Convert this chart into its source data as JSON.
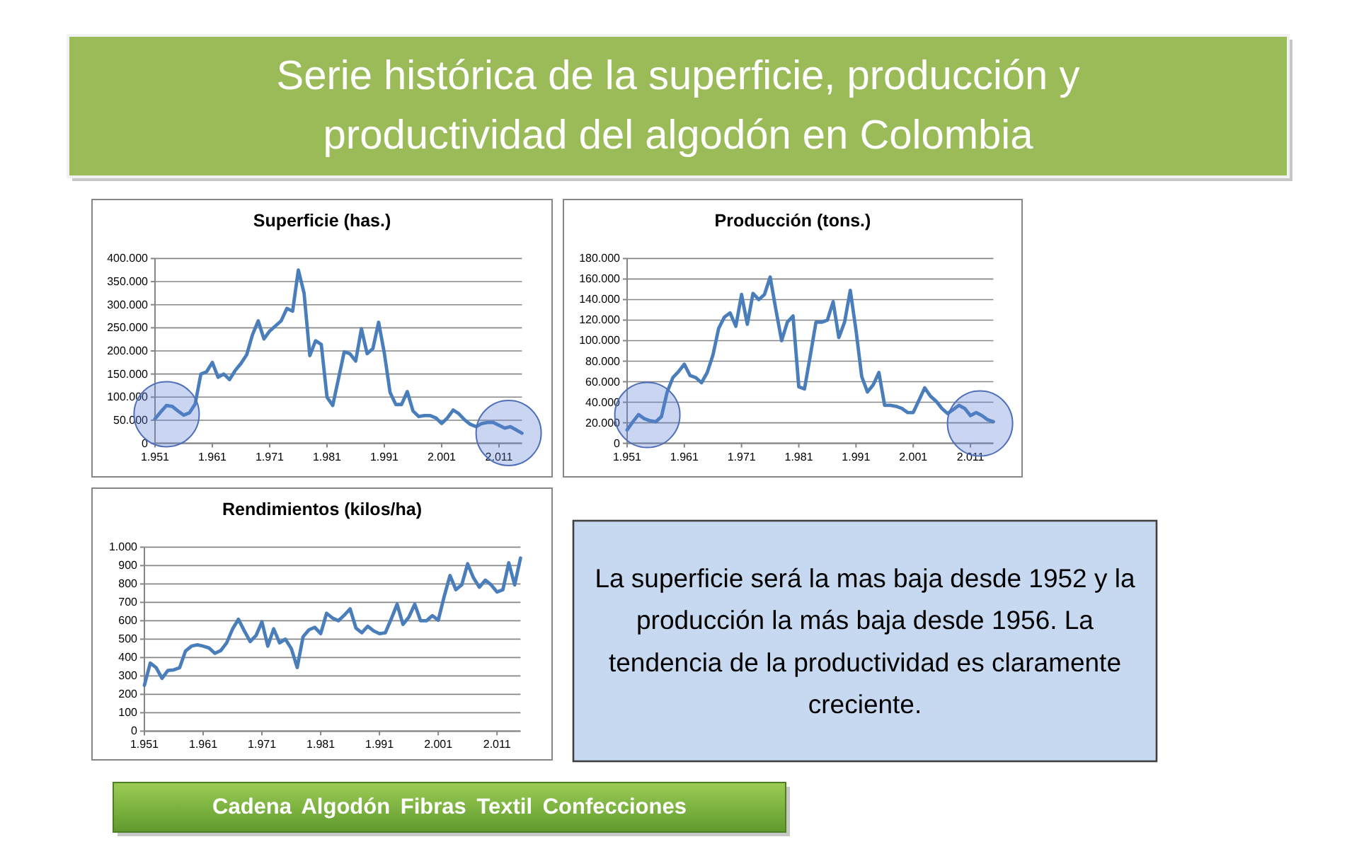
{
  "chart_data": [
    {
      "type": "other",
      "title": "Serie histórica de la superficie, producción y productividad del algodón en Colombia"
    },
    {
      "type": "line",
      "title": "Superficie (has.)",
      "x": [
        1951,
        1952,
        1953,
        1954,
        1955,
        1956,
        1957,
        1958,
        1959,
        1960,
        1961,
        1962,
        1963,
        1964,
        1965,
        1966,
        1967,
        1968,
        1969,
        1970,
        1971,
        1972,
        1973,
        1974,
        1975,
        1976,
        1977,
        1978,
        1979,
        1980,
        1981,
        1982,
        1983,
        1984,
        1985,
        1986,
        1987,
        1988,
        1989,
        1990,
        1991,
        1992,
        1993,
        1994,
        1995,
        1996,
        1997,
        1998,
        1999,
        2000,
        2001,
        2002,
        2003,
        2004,
        2005,
        2006,
        2007,
        2008,
        2009,
        2010,
        2011,
        2012,
        2013,
        2014,
        2015
      ],
      "series": [
        {
          "color": "#4a7ebb",
          "values": [
            53000,
            68000,
            82000,
            80000,
            70000,
            61000,
            66000,
            85000,
            150000,
            155000,
            175000,
            143000,
            150000,
            138000,
            158000,
            173000,
            192000,
            235000,
            265000,
            226000,
            243000,
            254000,
            265000,
            292000,
            286000,
            375000,
            325000,
            190000,
            222000,
            214000,
            100000,
            82000,
            140000,
            198000,
            194000,
            178000,
            248000,
            194000,
            205000,
            262000,
            195000,
            110000,
            84000,
            84000,
            112000,
            70000,
            58000,
            60000,
            60000,
            55000,
            43000,
            55000,
            72000,
            64000,
            51000,
            41000,
            36000,
            43000,
            45000,
            45000,
            39000,
            33000,
            36000,
            29000,
            22000
          ]
        }
      ],
      "xlim": [
        1951,
        2015
      ],
      "xticks": [
        {
          "value": 1951,
          "label": "1.951"
        },
        {
          "value": 1961,
          "label": "1.961"
        },
        {
          "value": 1971,
          "label": "1.971"
        },
        {
          "value": 1981,
          "label": "1.981"
        },
        {
          "value": 1991,
          "label": "1.991"
        },
        {
          "value": 2001,
          "label": "2.001"
        },
        {
          "value": 2011,
          "label": "2.011"
        }
      ],
      "ylim": [
        0,
        400000
      ],
      "yticks": [
        0,
        {
          "value": 50000,
          "label": "50.000"
        },
        {
          "value": 100000,
          "label": "100.000"
        },
        {
          "value": 150000,
          "label": "150.000"
        },
        {
          "value": 200000,
          "label": "200.000"
        },
        {
          "value": 250000,
          "label": "250.000"
        },
        {
          "value": 300000,
          "label": "300.000"
        },
        {
          "value": 350000,
          "label": "350.000"
        },
        {
          "value": 400000,
          "label": "400.000"
        }
      ],
      "grid": "y"
    },
    {
      "type": "line",
      "title": "Producción (tons.)",
      "x": [
        1951,
        1952,
        1953,
        1954,
        1955,
        1956,
        1957,
        1958,
        1959,
        1960,
        1961,
        1962,
        1963,
        1964,
        1965,
        1966,
        1967,
        1968,
        1969,
        1970,
        1971,
        1972,
        1973,
        1974,
        1975,
        1976,
        1977,
        1978,
        1979,
        1980,
        1981,
        1982,
        1983,
        1984,
        1985,
        1986,
        1987,
        1988,
        1989,
        1990,
        1991,
        1992,
        1993,
        1994,
        1995,
        1996,
        1997,
        1998,
        1999,
        2000,
        2001,
        2002,
        2003,
        2004,
        2005,
        2006,
        2007,
        2008,
        2009,
        2010,
        2011,
        2012,
        2013,
        2014,
        2015
      ],
      "series": [
        {
          "color": "#4a7ebb",
          "values": [
            13000,
            21000,
            28000,
            24000,
            22000,
            21000,
            26000,
            50000,
            64000,
            70000,
            77000,
            66000,
            64000,
            59000,
            69000,
            86000,
            112000,
            123000,
            127000,
            114000,
            145000,
            116000,
            146000,
            140000,
            145000,
            162000,
            130000,
            100000,
            118000,
            124000,
            55000,
            53000,
            85000,
            118000,
            118000,
            120000,
            138000,
            103000,
            118000,
            149000,
            110000,
            65000,
            50000,
            57000,
            69000,
            37000,
            37000,
            36000,
            34000,
            30000,
            30000,
            42000,
            54000,
            46000,
            41000,
            34000,
            29000,
            33000,
            37000,
            34000,
            27000,
            30000,
            27000,
            23000,
            21000
          ]
        }
      ],
      "xlim": [
        1951,
        2015
      ],
      "xticks": [
        {
          "value": 1951,
          "label": "1.951"
        },
        {
          "value": 1961,
          "label": "1.961"
        },
        {
          "value": 1971,
          "label": "1.971"
        },
        {
          "value": 1981,
          "label": "1.981"
        },
        {
          "value": 1991,
          "label": "1.991"
        },
        {
          "value": 2001,
          "label": "2.001"
        },
        {
          "value": 2011,
          "label": "2.011"
        }
      ],
      "ylim": [
        0,
        180000
      ],
      "yticks": [
        0,
        {
          "value": 20000,
          "label": "20.000"
        },
        {
          "value": 40000,
          "label": "40.000"
        },
        {
          "value": 60000,
          "label": "60.000"
        },
        {
          "value": 80000,
          "label": "80.000"
        },
        {
          "value": 100000,
          "label": "100.000"
        },
        {
          "value": 120000,
          "label": "120.000"
        },
        {
          "value": 140000,
          "label": "140.000"
        },
        {
          "value": 160000,
          "label": "160.000"
        },
        {
          "value": 180000,
          "label": "180.000"
        }
      ],
      "grid": "y"
    },
    {
      "type": "line",
      "title": "Rendimientos (kilos/ha)",
      "x": [
        1951,
        1952,
        1953,
        1954,
        1955,
        1956,
        1957,
        1958,
        1959,
        1960,
        1961,
        1962,
        1963,
        1964,
        1965,
        1966,
        1967,
        1968,
        1969,
        1970,
        1971,
        1972,
        1973,
        1974,
        1975,
        1976,
        1977,
        1978,
        1979,
        1980,
        1981,
        1982,
        1983,
        1984,
        1985,
        1986,
        1987,
        1988,
        1989,
        1990,
        1991,
        1992,
        1993,
        1994,
        1995,
        1996,
        1997,
        1998,
        1999,
        2000,
        2001,
        2002,
        2003,
        2004,
        2005,
        2006,
        2007,
        2008,
        2009,
        2010,
        2011,
        2012,
        2013,
        2014,
        2015
      ],
      "series": [
        {
          "color": "#4a7ebb",
          "values": [
            249,
            370,
            345,
            287,
            330,
            333,
            345,
            436,
            462,
            469,
            462,
            452,
            423,
            438,
            480,
            555,
            608,
            545,
            487,
            520,
            595,
            462,
            556,
            480,
            500,
            449,
            346,
            513,
            551,
            564,
            530,
            641,
            615,
            600,
            630,
            665,
            560,
            535,
            570,
            545,
            530,
            535,
            610,
            690,
            580,
            620,
            690,
            600,
            600,
            628,
            603,
            731,
            846,
            769,
            795,
            910,
            833,
            782,
            821,
            795,
            756,
            769,
            915,
            795,
            941
          ]
        }
      ],
      "xlim": [
        1951,
        2015
      ],
      "xticks": [
        {
          "value": 1951,
          "label": "1.951"
        },
        {
          "value": 1961,
          "label": "1.961"
        },
        {
          "value": 1971,
          "label": "1.971"
        },
        {
          "value": 1981,
          "label": "1.981"
        },
        {
          "value": 1991,
          "label": "1.991"
        },
        {
          "value": 2001,
          "label": "2.001"
        },
        {
          "value": 2011,
          "label": "2.011"
        }
      ],
      "ylim": [
        0,
        1000
      ],
      "yticks": [
        0,
        100,
        200,
        300,
        400,
        500,
        600,
        700,
        800,
        900,
        {
          "value": 1000,
          "label": "1.000"
        }
      ],
      "grid": "y"
    },
    {
      "type": "other",
      "annotations": [
        "La superficie será la mas baja desde 1952 y la producción la más baja desde 1956. La tendencia de la productividad es claramente creciente.",
        "Cadena Algodón Fibras Textil Confecciones"
      ]
    }
  ]
}
